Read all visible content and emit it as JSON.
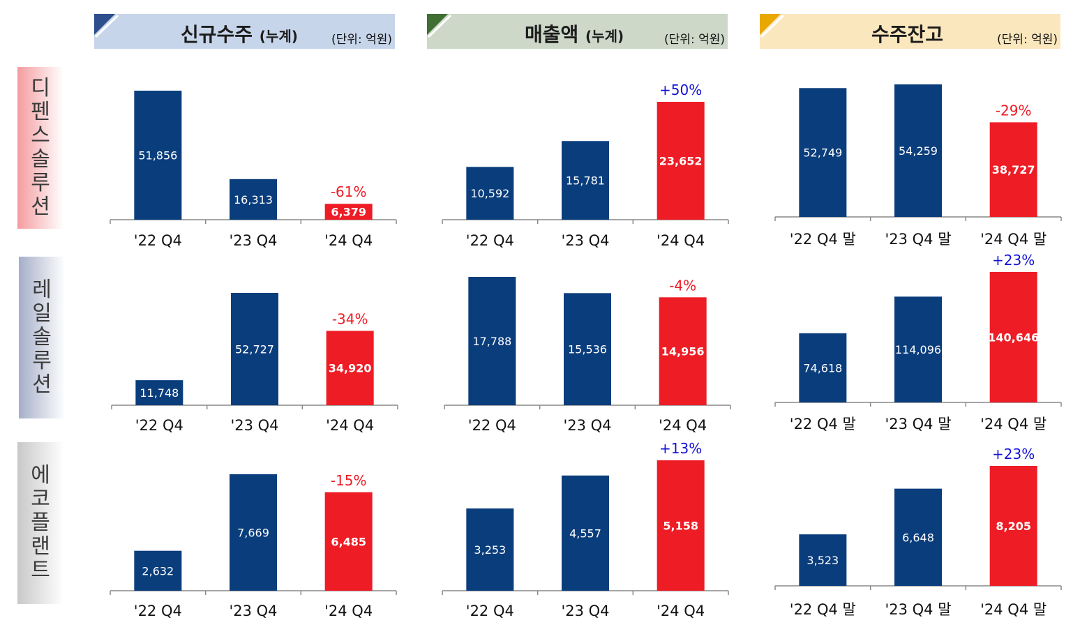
{
  "headers": [
    {
      "title": "신규수주",
      "sub": "(누계)",
      "unit": "(단위: 억원)",
      "bg": "#c7d5ea",
      "accent": "#2d4f8e"
    },
    {
      "title": "매출액",
      "sub": "(누계)",
      "unit": "(단위: 억원)",
      "bg": "#cdd8c8",
      "accent": "#3f6f33"
    },
    {
      "title": "수주잔고",
      "sub": "",
      "unit": "(단위: 억원)",
      "bg": "#fbe7bd",
      "accent": "#e8a800"
    }
  ],
  "rows": [
    {
      "label": "디펜스솔루션",
      "bg": "#f49ca0"
    },
    {
      "label": "레일솔루션",
      "bg": "#a5afc8"
    },
    {
      "label": "에코플랜트",
      "bg": "#c8c8c8"
    }
  ],
  "colors": {
    "bar": "#0a3d7c",
    "highlight": "#ee1c25",
    "down": "#ee1c25",
    "up": "#1212d6",
    "axis": "#888888"
  },
  "chart_data": [
    {
      "type": "bar",
      "segment": "디펜스솔루션",
      "metric": "신규수주",
      "categories": [
        "'22 Q4",
        "'23 Q4",
        "'24 Q4"
      ],
      "values": [
        51856,
        16313,
        6379
      ],
      "labels": [
        "51,856",
        "16,313",
        "6,379"
      ],
      "change": "-61%",
      "change_dir": "down"
    },
    {
      "type": "bar",
      "segment": "디펜스솔루션",
      "metric": "매출액",
      "categories": [
        "'22 Q4",
        "'23 Q4",
        "'24 Q4"
      ],
      "values": [
        10592,
        15781,
        23652
      ],
      "labels": [
        "10,592",
        "15,781",
        "23,652"
      ],
      "change": "+50%",
      "change_dir": "up"
    },
    {
      "type": "bar",
      "segment": "디펜스솔루션",
      "metric": "수주잔고",
      "categories": [
        "'22 Q4 말",
        "'23 Q4 말",
        "'24 Q4 말"
      ],
      "values": [
        52749,
        54259,
        38727
      ],
      "labels": [
        "52,749",
        "54,259",
        "38,727"
      ],
      "change": "-29%",
      "change_dir": "down"
    },
    {
      "type": "bar",
      "segment": "레일솔루션",
      "metric": "신규수주",
      "categories": [
        "'22 Q4",
        "'23 Q4",
        "'24 Q4"
      ],
      "values": [
        11748,
        52727,
        34920
      ],
      "labels": [
        "11,748",
        "52,727",
        "34,920"
      ],
      "change": "-34%",
      "change_dir": "down"
    },
    {
      "type": "bar",
      "segment": "레일솔루션",
      "metric": "매출액",
      "categories": [
        "'22 Q4",
        "'23 Q4",
        "'24 Q4"
      ],
      "values": [
        17788,
        15536,
        14956
      ],
      "labels": [
        "17,788",
        "15,536",
        "14,956"
      ],
      "change": "-4%",
      "change_dir": "down"
    },
    {
      "type": "bar",
      "segment": "레일솔루션",
      "metric": "수주잔고",
      "categories": [
        "'22 Q4 말",
        "'23 Q4 말",
        "'24 Q4 말"
      ],
      "values": [
        74618,
        114096,
        140646
      ],
      "labels": [
        "74,618",
        "114,096",
        "140,646"
      ],
      "change": "+23%",
      "change_dir": "up"
    },
    {
      "type": "bar",
      "segment": "에코플랜트",
      "metric": "신규수주",
      "categories": [
        "'22 Q4",
        "'23 Q4",
        "'24 Q4"
      ],
      "values": [
        2632,
        7669,
        6485
      ],
      "labels": [
        "2,632",
        "7,669",
        "6,485"
      ],
      "change": "-15%",
      "change_dir": "down"
    },
    {
      "type": "bar",
      "segment": "에코플랜트",
      "metric": "매출액",
      "categories": [
        "'22 Q4",
        "'23 Q4",
        "'24 Q4"
      ],
      "values": [
        3253,
        4557,
        5158
      ],
      "labels": [
        "3,253",
        "4,557",
        "5,158"
      ],
      "change": "+13%",
      "change_dir": "up"
    },
    {
      "type": "bar",
      "segment": "에코플랜트",
      "metric": "수주잔고",
      "categories": [
        "'22 Q4 말",
        "'23 Q4 말",
        "'24 Q4 말"
      ],
      "values": [
        3523,
        6648,
        8205
      ],
      "labels": [
        "3,523",
        "6,648",
        "8,205"
      ],
      "change": "+23%",
      "change_dir": "up"
    }
  ]
}
